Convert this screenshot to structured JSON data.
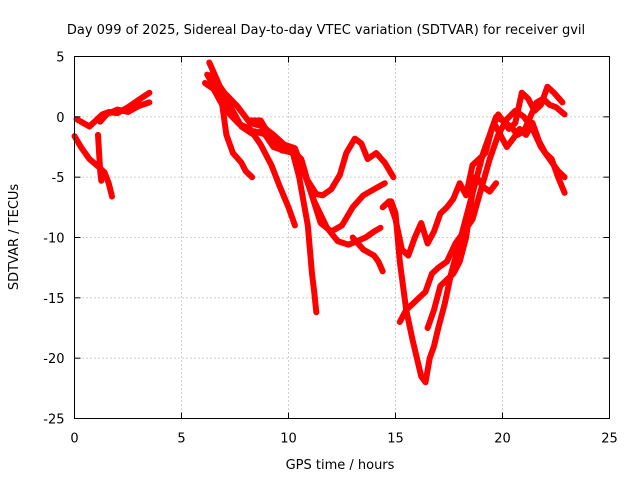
{
  "chart_data": {
    "type": "scatter",
    "title": "Day 099 of 2025, Sidereal Day-to-day VTEC variation (SDTVAR) for receiver gvil",
    "xlabel": "GPS time / hours",
    "ylabel": "SDTVAR / TECUs",
    "xlim": [
      0,
      25
    ],
    "ylim": [
      -25,
      5
    ],
    "xticks": [
      0,
      5,
      10,
      15,
      20,
      25
    ],
    "yticks": [
      5,
      0,
      -5,
      -10,
      -15,
      -20,
      -25
    ],
    "grid": true,
    "marker": "+",
    "color": "#ff0000",
    "series": [
      {
        "x": [
          0.0,
          0.3,
          0.7,
          1.1,
          1.4,
          1.6,
          1.75
        ],
        "y": [
          -1.6,
          -2.5,
          -3.5,
          -4.1,
          -4.6,
          -5.5,
          -6.6
        ]
      },
      {
        "x": [
          0.1,
          0.4,
          0.7,
          1.0,
          1.3,
          1.6,
          2.0,
          2.5,
          3.0,
          3.5
        ],
        "y": [
          -0.2,
          -0.5,
          -0.8,
          -0.3,
          0.2,
          0.4,
          0.3,
          0.8,
          1.4,
          2.0
        ]
      },
      {
        "x": [
          1.2,
          1.5,
          2.0,
          2.5,
          3.0,
          3.5
        ],
        "y": [
          -0.4,
          0.2,
          0.6,
          0.4,
          0.9,
          1.2
        ]
      },
      {
        "x": [
          1.1,
          1.15,
          1.2,
          1.25
        ],
        "y": [
          -1.5,
          -3.0,
          -4.5,
          -5.3
        ]
      },
      {
        "x": [
          6.1,
          6.5,
          6.9,
          7.1,
          7.4,
          7.8,
          8.0,
          8.3
        ],
        "y": [
          2.8,
          2.3,
          1.0,
          -1.5,
          -3.0,
          -3.8,
          -4.5,
          -5.0
        ]
      },
      {
        "x": [
          6.2,
          6.7,
          7.2,
          7.7,
          8.2,
          8.7,
          9.2,
          9.6,
          10.0,
          10.3
        ],
        "y": [
          3.5,
          2.0,
          0.3,
          -0.6,
          -1.0,
          -2.3,
          -4.0,
          -5.8,
          -7.5,
          -9.0
        ]
      },
      {
        "x": [
          6.4,
          7.0,
          7.6,
          8.2,
          8.8,
          9.3,
          9.8,
          10.3,
          10.8,
          11.3,
          11.6,
          12.0,
          12.4,
          12.7,
          13.1,
          13.4,
          13.7,
          14.1,
          14.5,
          14.9
        ],
        "y": [
          3.5,
          2.0,
          0.9,
          -0.5,
          -0.8,
          -1.5,
          -2.3,
          -2.6,
          -5.0,
          -6.4,
          -6.5,
          -6.0,
          -4.8,
          -3.0,
          -1.8,
          -2.2,
          -3.5,
          -3.0,
          -3.8,
          -5.0
        ]
      },
      {
        "x": [
          6.3,
          6.8,
          7.3,
          7.8,
          8.3,
          8.8,
          9.3,
          9.8,
          10.2,
          10.5,
          10.7,
          10.9,
          11.0,
          11.1,
          11.2,
          11.3
        ],
        "y": [
          4.5,
          2.5,
          0.8,
          -0.8,
          -1.4,
          -1.2,
          -2.5,
          -2.8,
          -3.0,
          -5.0,
          -7.0,
          -9.0,
          -11.0,
          -13.0,
          -14.5,
          -16.2
        ]
      },
      {
        "x": [
          8.2,
          8.7,
          9.2,
          9.7,
          10.2,
          10.6,
          11.0,
          11.5,
          12.0,
          12.5,
          13.0,
          13.5,
          14.0,
          14.5
        ],
        "y": [
          -0.3,
          -0.3,
          -1.8,
          -2.8,
          -2.8,
          -3.5,
          -6.0,
          -8.8,
          -9.5,
          -9.0,
          -7.5,
          -6.5,
          -6.0,
          -5.5
        ]
      },
      {
        "x": [
          8.4,
          9.0,
          9.6,
          10.2,
          10.7,
          11.2,
          11.8,
          12.3,
          12.8,
          13.2,
          13.6,
          14.0,
          14.3
        ],
        "y": [
          -1.2,
          -1.5,
          -2.2,
          -3.0,
          -4.5,
          -7.0,
          -9.2,
          -10.3,
          -10.6,
          -10.3,
          -10.0,
          -9.5,
          -9.2
        ]
      },
      {
        "x": [
          13.0,
          13.5,
          14.0,
          14.2,
          14.4
        ],
        "y": [
          -10.0,
          -11.0,
          -11.5,
          -12.0,
          -12.8
        ]
      },
      {
        "x": [
          14.4,
          14.7,
          15.0,
          15.3,
          15.6,
          15.9,
          16.2,
          16.5,
          16.8,
          17.1,
          17.4,
          17.7,
          18.0,
          18.3,
          18.6,
          18.9,
          19.2,
          19.5,
          19.8,
          20.1,
          20.4,
          20.7,
          21.0,
          21.3,
          21.6,
          21.9,
          22.2,
          22.5,
          22.9
        ],
        "y": [
          -7.5,
          -7.0,
          -8.5,
          -11.0,
          -11.5,
          -10.0,
          -8.8,
          -10.5,
          -9.5,
          -8.0,
          -7.5,
          -6.8,
          -5.5,
          -6.5,
          -4.0,
          -3.5,
          -3.0,
          -1.0,
          0.2,
          -0.5,
          -0.8,
          -1.5,
          -1.2,
          0.0,
          1.2,
          1.5,
          1.0,
          0.8,
          0.2
        ]
      },
      {
        "x": [
          14.8,
          15.0,
          15.2,
          15.5,
          15.8,
          16.0,
          16.2,
          16.4,
          16.6,
          16.8,
          17.0,
          17.3,
          17.6,
          17.9,
          18.2,
          18.5,
          18.8,
          19.1,
          19.4,
          19.7,
          20.0,
          20.3,
          20.6,
          20.9,
          21.2,
          21.5,
          21.8,
          22.1,
          22.4,
          22.8
        ],
        "y": [
          -7.0,
          -8.0,
          -12.0,
          -16.0,
          -18.5,
          -20.0,
          -21.5,
          -22.0,
          -20.0,
          -19.0,
          -17.5,
          -15.5,
          -13.0,
          -11.0,
          -9.0,
          -7.0,
          -5.0,
          -3.0,
          -1.5,
          0.0,
          -0.3,
          -1.0,
          -0.5,
          2.0,
          1.5,
          0.5,
          1.0,
          2.5,
          2.0,
          1.2
        ]
      },
      {
        "x": [
          15.2,
          15.5,
          15.8,
          16.1,
          16.4,
          16.7,
          17.0,
          17.4,
          17.8,
          18.2,
          18.6,
          19.0,
          19.4,
          19.8,
          20.2,
          20.6,
          21.0,
          21.4,
          21.8,
          22.2,
          22.6,
          22.9
        ],
        "y": [
          -17.0,
          -16.0,
          -15.5,
          -15.0,
          -14.5,
          -13.0,
          -12.5,
          -12.0,
          -10.5,
          -9.5,
          -8.5,
          -6.0,
          -3.5,
          -1.5,
          -0.2,
          0.5,
          0.0,
          -1.0,
          -2.5,
          -3.5,
          -4.5,
          -5.0
        ]
      },
      {
        "x": [
          16.5,
          16.8,
          17.1,
          17.4,
          17.7,
          18.0,
          18.3,
          18.5,
          18.7
        ],
        "y": [
          -17.5,
          -16.0,
          -14.0,
          -13.5,
          -13.0,
          -12.0,
          -10.0,
          -7.5,
          -5.0
        ]
      },
      {
        "x": [
          19.6,
          19.9,
          20.2,
          20.5,
          20.8,
          21.1,
          21.4,
          21.7,
          22.0,
          22.3,
          22.6,
          22.9
        ],
        "y": [
          -0.5,
          -1.5,
          -2.5,
          -1.8,
          -1.0,
          -1.5,
          -0.5,
          -2.0,
          -3.0,
          -3.5,
          -5.0,
          -6.3
        ]
      },
      {
        "x": [
          18.8,
          19.1,
          19.4,
          19.7
        ],
        "y": [
          -5.0,
          -5.8,
          -6.2,
          -5.5
        ]
      }
    ]
  }
}
